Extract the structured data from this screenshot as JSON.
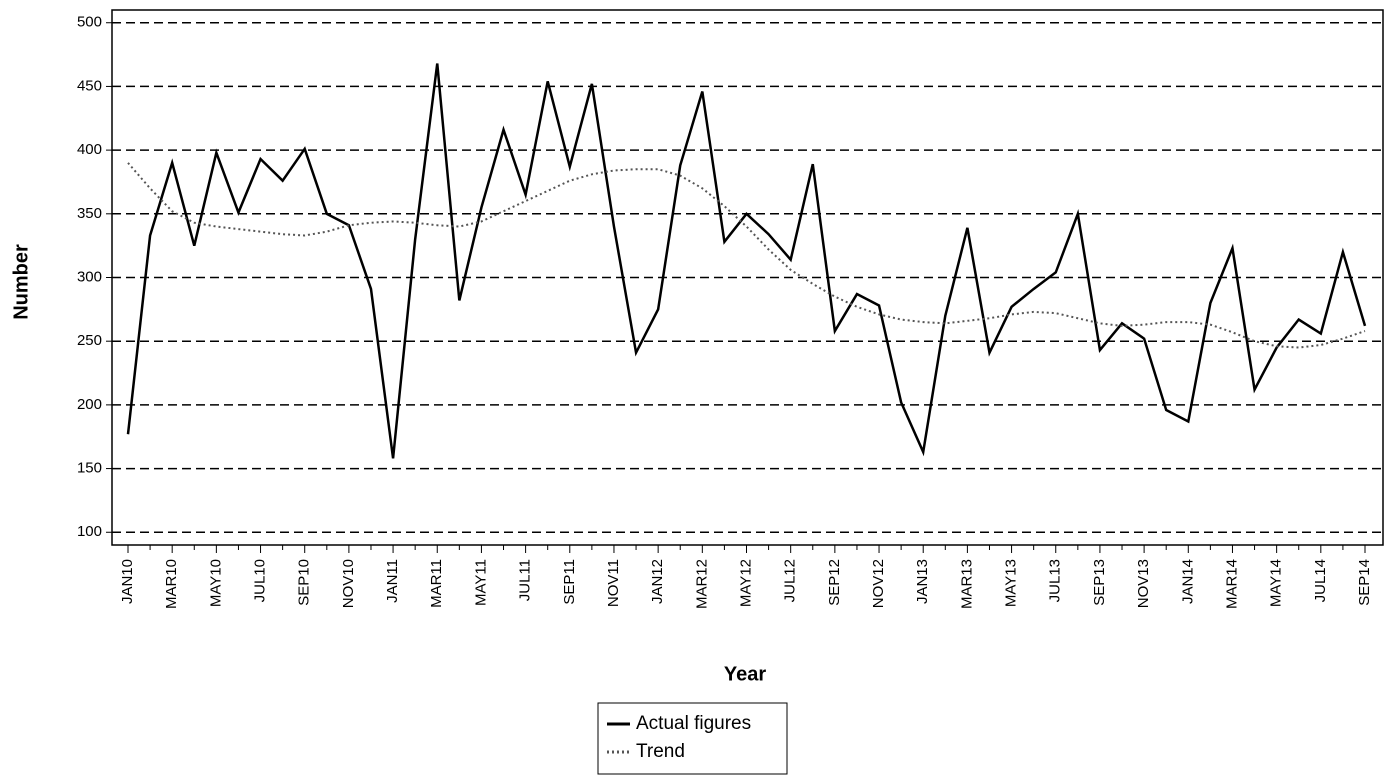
{
  "chart_data": {
    "type": "line",
    "x_label": "Year",
    "y_label": "Number",
    "categories": [
      "JAN10",
      null,
      "MAR10",
      null,
      "MAY10",
      null,
      "JUL10",
      null,
      "SEP10",
      null,
      "NOV10",
      null,
      "JAN11",
      null,
      "MAR11",
      null,
      "MAY11",
      null,
      "JUL11",
      null,
      "SEP11",
      null,
      "NOV11",
      null,
      "JAN12",
      null,
      "MAR12",
      null,
      "MAY12",
      null,
      "JUL12",
      null,
      "SEP12",
      null,
      "NOV12",
      null,
      "JAN13",
      null,
      "MAR13",
      null,
      "MAY13",
      null,
      "JUL13",
      null,
      "SEP13",
      null,
      "NOV13",
      null,
      "JAN14",
      null,
      "MAR14",
      null,
      "MAY14",
      null,
      "JUL14",
      null,
      "SEP14"
    ],
    "series": [
      {
        "name": "Actual figures",
        "color": "#000000",
        "dash": "solid",
        "values": [
          177,
          333,
          390,
          325,
          398,
          351,
          393,
          376,
          401,
          350,
          341,
          291,
          158,
          330,
          468,
          282,
          355,
          416,
          365,
          454,
          387,
          452,
          340,
          241,
          275,
          388,
          446,
          328,
          350,
          334,
          314,
          389,
          258,
          287,
          278,
          202,
          163,
          270,
          339,
          241,
          277,
          291,
          304,
          350,
          243,
          264,
          252,
          196,
          187,
          280,
          323,
          212,
          245,
          267,
          256,
          320,
          262
        ]
      },
      {
        "name": "Trend",
        "color": "#555555",
        "dash": "dotted",
        "values": [
          390,
          370,
          352,
          343,
          340,
          338,
          336,
          334,
          333,
          336,
          341,
          343,
          344,
          343,
          341,
          340,
          344,
          352,
          360,
          368,
          376,
          381,
          384,
          385,
          385,
          380,
          370,
          356,
          340,
          322,
          306,
          295,
          285,
          277,
          271,
          267,
          265,
          264,
          266,
          268,
          271,
          273,
          272,
          268,
          264,
          262,
          263,
          265,
          265,
          263,
          257,
          250,
          246,
          245,
          247,
          252,
          258
        ]
      }
    ],
    "ylim": [
      90,
      510
    ],
    "yticks": [
      100,
      150,
      200,
      250,
      300,
      350,
      400,
      450,
      500
    ],
    "grid": true
  }
}
